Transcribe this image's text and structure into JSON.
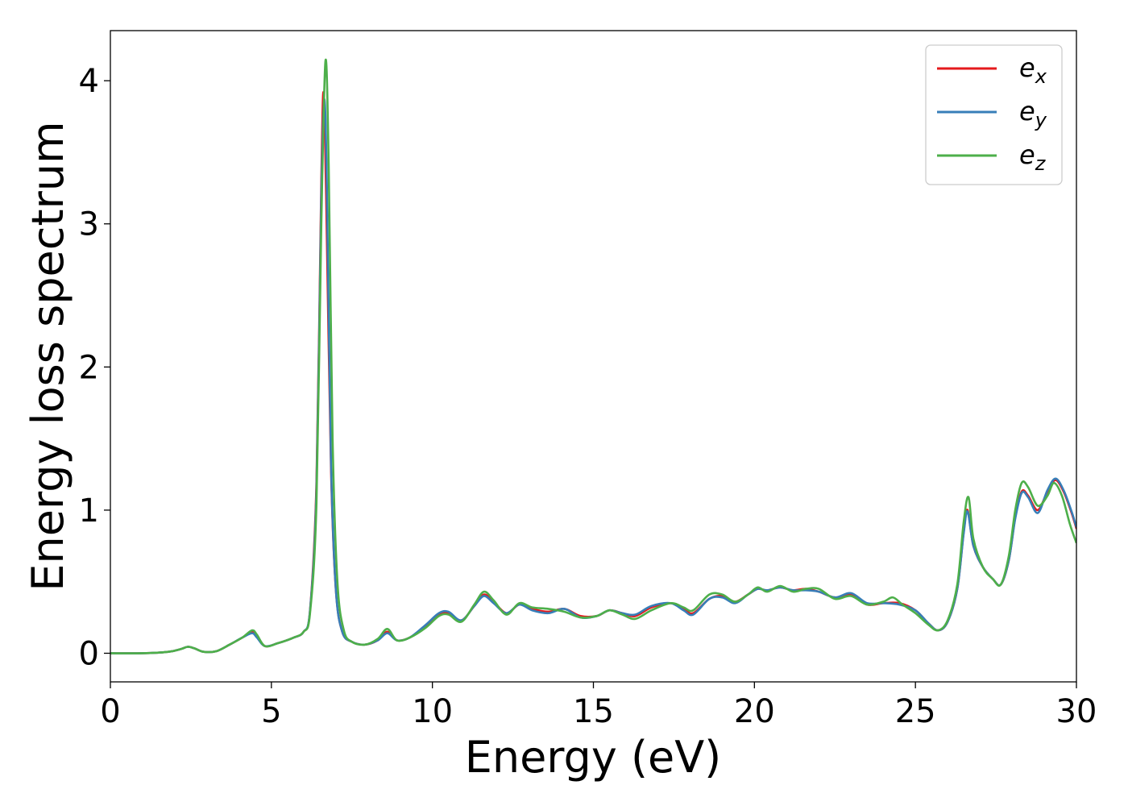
{
  "chart_data": {
    "type": "line",
    "title": "",
    "xlabel": "Energy (eV)",
    "ylabel": "Energy loss spectrum",
    "xlim": [
      0,
      30
    ],
    "ylim": [
      -0.2,
      4.35
    ],
    "x_ticks": [
      0,
      5,
      10,
      15,
      20,
      25,
      30
    ],
    "y_ticks": [
      0,
      1,
      2,
      3,
      4
    ],
    "grid": false,
    "legend_position": "top-right",
    "series": [
      {
        "name": "e_x",
        "label_main": "e",
        "label_sub": "x",
        "color": "#e41a1c",
        "points": [
          [
            0,
            0
          ],
          [
            1,
            0.0
          ],
          [
            1.8,
            0.01
          ],
          [
            2.2,
            0.03
          ],
          [
            2.4,
            0.045
          ],
          [
            2.6,
            0.035
          ],
          [
            2.9,
            0.01
          ],
          [
            3.3,
            0.015
          ],
          [
            3.7,
            0.06
          ],
          [
            4.1,
            0.11
          ],
          [
            4.4,
            0.15
          ],
          [
            4.55,
            0.12
          ],
          [
            4.8,
            0.05
          ],
          [
            5.2,
            0.07
          ],
          [
            5.7,
            0.11
          ],
          [
            6.0,
            0.15
          ],
          [
            6.2,
            0.3
          ],
          [
            6.4,
            1.2
          ],
          [
            6.55,
            3.3
          ],
          [
            6.62,
            3.92
          ],
          [
            6.7,
            3.2
          ],
          [
            6.85,
            1.3
          ],
          [
            7.0,
            0.45
          ],
          [
            7.2,
            0.15
          ],
          [
            7.5,
            0.08
          ],
          [
            7.9,
            0.06
          ],
          [
            8.3,
            0.09
          ],
          [
            8.6,
            0.15
          ],
          [
            8.9,
            0.09
          ],
          [
            9.3,
            0.11
          ],
          [
            9.8,
            0.19
          ],
          [
            10.2,
            0.27
          ],
          [
            10.5,
            0.28
          ],
          [
            10.9,
            0.23
          ],
          [
            11.3,
            0.33
          ],
          [
            11.6,
            0.41
          ],
          [
            11.9,
            0.36
          ],
          [
            12.3,
            0.28
          ],
          [
            12.7,
            0.34
          ],
          [
            13.1,
            0.31
          ],
          [
            13.6,
            0.29
          ],
          [
            14.1,
            0.31
          ],
          [
            14.6,
            0.26
          ],
          [
            15.1,
            0.26
          ],
          [
            15.5,
            0.3
          ],
          [
            15.9,
            0.28
          ],
          [
            16.3,
            0.26
          ],
          [
            16.8,
            0.32
          ],
          [
            17.4,
            0.35
          ],
          [
            17.8,
            0.31
          ],
          [
            18.1,
            0.28
          ],
          [
            18.6,
            0.38
          ],
          [
            19.0,
            0.4
          ],
          [
            19.4,
            0.36
          ],
          [
            19.8,
            0.41
          ],
          [
            20.1,
            0.45
          ],
          [
            20.4,
            0.44
          ],
          [
            20.8,
            0.46
          ],
          [
            21.2,
            0.44
          ],
          [
            21.6,
            0.45
          ],
          [
            22.0,
            0.43
          ],
          [
            22.5,
            0.39
          ],
          [
            23.0,
            0.41
          ],
          [
            23.5,
            0.34
          ],
          [
            24.0,
            0.35
          ],
          [
            24.5,
            0.35
          ],
          [
            25.0,
            0.3
          ],
          [
            25.4,
            0.21
          ],
          [
            25.7,
            0.16
          ],
          [
            26.0,
            0.22
          ],
          [
            26.3,
            0.45
          ],
          [
            26.5,
            0.85
          ],
          [
            26.62,
            1.0
          ],
          [
            26.8,
            0.75
          ],
          [
            27.1,
            0.6
          ],
          [
            27.4,
            0.52
          ],
          [
            27.65,
            0.48
          ],
          [
            27.9,
            0.65
          ],
          [
            28.1,
            0.95
          ],
          [
            28.3,
            1.13
          ],
          [
            28.5,
            1.1
          ],
          [
            28.8,
            1.0
          ],
          [
            29.1,
            1.13
          ],
          [
            29.35,
            1.21
          ],
          [
            29.6,
            1.13
          ],
          [
            29.85,
            0.98
          ],
          [
            30,
            0.87
          ]
        ]
      },
      {
        "name": "e_y",
        "label_main": "e",
        "label_sub": "y",
        "color": "#377eb8",
        "points": [
          [
            0,
            0
          ],
          [
            1,
            0.0
          ],
          [
            1.8,
            0.01
          ],
          [
            2.2,
            0.03
          ],
          [
            2.4,
            0.045
          ],
          [
            2.6,
            0.035
          ],
          [
            2.9,
            0.01
          ],
          [
            3.3,
            0.015
          ],
          [
            3.7,
            0.06
          ],
          [
            4.1,
            0.11
          ],
          [
            4.4,
            0.14
          ],
          [
            4.55,
            0.11
          ],
          [
            4.8,
            0.05
          ],
          [
            5.2,
            0.07
          ],
          [
            5.7,
            0.11
          ],
          [
            6.0,
            0.15
          ],
          [
            6.2,
            0.3
          ],
          [
            6.4,
            1.15
          ],
          [
            6.55,
            3.2
          ],
          [
            6.64,
            3.87
          ],
          [
            6.72,
            3.3
          ],
          [
            6.85,
            1.35
          ],
          [
            7.0,
            0.45
          ],
          [
            7.2,
            0.15
          ],
          [
            7.5,
            0.08
          ],
          [
            7.9,
            0.06
          ],
          [
            8.3,
            0.09
          ],
          [
            8.6,
            0.14
          ],
          [
            8.9,
            0.09
          ],
          [
            9.3,
            0.11
          ],
          [
            9.8,
            0.2
          ],
          [
            10.2,
            0.28
          ],
          [
            10.5,
            0.29
          ],
          [
            10.9,
            0.23
          ],
          [
            11.3,
            0.33
          ],
          [
            11.6,
            0.4
          ],
          [
            11.9,
            0.35
          ],
          [
            12.3,
            0.28
          ],
          [
            12.7,
            0.34
          ],
          [
            13.1,
            0.3
          ],
          [
            13.6,
            0.28
          ],
          [
            14.1,
            0.31
          ],
          [
            14.6,
            0.25
          ],
          [
            15.1,
            0.26
          ],
          [
            15.5,
            0.3
          ],
          [
            15.9,
            0.28
          ],
          [
            16.3,
            0.27
          ],
          [
            16.8,
            0.33
          ],
          [
            17.4,
            0.35
          ],
          [
            17.8,
            0.3
          ],
          [
            18.1,
            0.27
          ],
          [
            18.6,
            0.38
          ],
          [
            19.0,
            0.39
          ],
          [
            19.4,
            0.35
          ],
          [
            19.8,
            0.41
          ],
          [
            20.1,
            0.45
          ],
          [
            20.4,
            0.44
          ],
          [
            20.8,
            0.46
          ],
          [
            21.2,
            0.44
          ],
          [
            21.6,
            0.44
          ],
          [
            22.0,
            0.43
          ],
          [
            22.5,
            0.39
          ],
          [
            23.0,
            0.42
          ],
          [
            23.5,
            0.35
          ],
          [
            24.0,
            0.35
          ],
          [
            24.5,
            0.34
          ],
          [
            25.0,
            0.3
          ],
          [
            25.4,
            0.21
          ],
          [
            25.7,
            0.16
          ],
          [
            26.0,
            0.22
          ],
          [
            26.3,
            0.45
          ],
          [
            26.5,
            0.84
          ],
          [
            26.62,
            0.99
          ],
          [
            26.8,
            0.75
          ],
          [
            27.1,
            0.6
          ],
          [
            27.4,
            0.52
          ],
          [
            27.65,
            0.48
          ],
          [
            27.9,
            0.65
          ],
          [
            28.1,
            0.94
          ],
          [
            28.3,
            1.12
          ],
          [
            28.5,
            1.09
          ],
          [
            28.8,
            0.98
          ],
          [
            29.1,
            1.14
          ],
          [
            29.35,
            1.22
          ],
          [
            29.6,
            1.14
          ],
          [
            29.85,
            0.99
          ],
          [
            30,
            0.88
          ]
        ]
      },
      {
        "name": "e_z",
        "label_main": "e",
        "label_sub": "z",
        "color": "#4daf4a",
        "points": [
          [
            0,
            0
          ],
          [
            1,
            0.0
          ],
          [
            1.8,
            0.01
          ],
          [
            2.2,
            0.03
          ],
          [
            2.4,
            0.045
          ],
          [
            2.6,
            0.035
          ],
          [
            2.9,
            0.01
          ],
          [
            3.3,
            0.015
          ],
          [
            3.7,
            0.06
          ],
          [
            4.1,
            0.11
          ],
          [
            4.4,
            0.16
          ],
          [
            4.55,
            0.13
          ],
          [
            4.8,
            0.05
          ],
          [
            5.2,
            0.07
          ],
          [
            5.7,
            0.11
          ],
          [
            6.0,
            0.15
          ],
          [
            6.2,
            0.28
          ],
          [
            6.4,
            1.05
          ],
          [
            6.55,
            3.0
          ],
          [
            6.68,
            4.14
          ],
          [
            6.78,
            3.4
          ],
          [
            6.9,
            1.5
          ],
          [
            7.05,
            0.5
          ],
          [
            7.25,
            0.16
          ],
          [
            7.5,
            0.08
          ],
          [
            7.9,
            0.06
          ],
          [
            8.3,
            0.1
          ],
          [
            8.6,
            0.17
          ],
          [
            8.9,
            0.09
          ],
          [
            9.3,
            0.11
          ],
          [
            9.8,
            0.18
          ],
          [
            10.2,
            0.26
          ],
          [
            10.5,
            0.27
          ],
          [
            10.9,
            0.22
          ],
          [
            11.3,
            0.34
          ],
          [
            11.6,
            0.43
          ],
          [
            11.9,
            0.37
          ],
          [
            12.3,
            0.27
          ],
          [
            12.7,
            0.35
          ],
          [
            13.1,
            0.32
          ],
          [
            13.6,
            0.31
          ],
          [
            14.1,
            0.29
          ],
          [
            14.6,
            0.25
          ],
          [
            15.1,
            0.26
          ],
          [
            15.5,
            0.3
          ],
          [
            15.9,
            0.27
          ],
          [
            16.3,
            0.24
          ],
          [
            16.8,
            0.3
          ],
          [
            17.4,
            0.35
          ],
          [
            17.8,
            0.32
          ],
          [
            18.1,
            0.3
          ],
          [
            18.6,
            0.41
          ],
          [
            19.0,
            0.41
          ],
          [
            19.4,
            0.36
          ],
          [
            19.8,
            0.41
          ],
          [
            20.1,
            0.46
          ],
          [
            20.4,
            0.43
          ],
          [
            20.8,
            0.47
          ],
          [
            21.2,
            0.43
          ],
          [
            21.6,
            0.45
          ],
          [
            22.0,
            0.45
          ],
          [
            22.5,
            0.38
          ],
          [
            23.0,
            0.4
          ],
          [
            23.5,
            0.34
          ],
          [
            24.0,
            0.36
          ],
          [
            24.3,
            0.39
          ],
          [
            24.6,
            0.34
          ],
          [
            25.0,
            0.28
          ],
          [
            25.4,
            0.2
          ],
          [
            25.7,
            0.16
          ],
          [
            26.0,
            0.23
          ],
          [
            26.3,
            0.48
          ],
          [
            26.5,
            0.92
          ],
          [
            26.65,
            1.09
          ],
          [
            26.8,
            0.8
          ],
          [
            27.1,
            0.6
          ],
          [
            27.4,
            0.52
          ],
          [
            27.65,
            0.48
          ],
          [
            27.9,
            0.68
          ],
          [
            28.1,
            1.0
          ],
          [
            28.3,
            1.19
          ],
          [
            28.5,
            1.16
          ],
          [
            28.8,
            1.03
          ],
          [
            29.1,
            1.1
          ],
          [
            29.3,
            1.19
          ],
          [
            29.55,
            1.1
          ],
          [
            29.8,
            0.9
          ],
          [
            30,
            0.77
          ]
        ]
      }
    ]
  }
}
